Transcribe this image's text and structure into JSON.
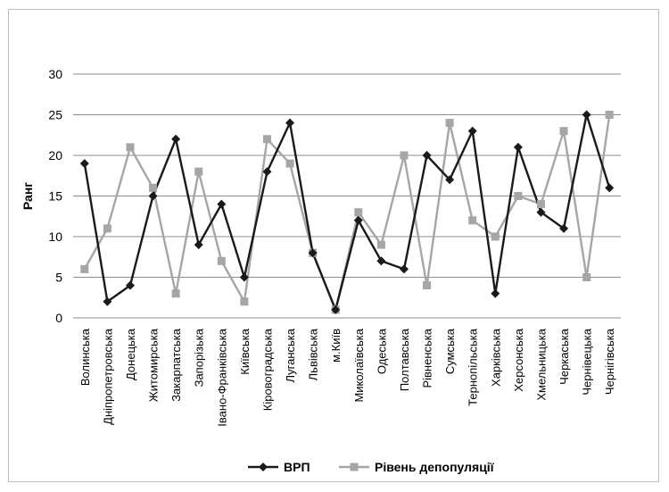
{
  "chart_data": {
    "type": "line",
    "title": "",
    "xlabel": "",
    "ylabel": "Ранг",
    "ylim": [
      0,
      30
    ],
    "yticks": [
      0,
      5,
      10,
      15,
      20,
      25,
      30
    ],
    "grid": "horizontal",
    "legend_position": "bottom",
    "categories": [
      "Волинська",
      "Дніпропетровська",
      "Донецька",
      "Житомирська",
      "Закарпатська",
      "Запорізька",
      "Івано-Франківська",
      "Київська",
      "Кіровоградська",
      "Луганська",
      "Львівська",
      "м.Київ",
      "Миколаївська",
      "Одеська",
      "Полтавська",
      "Рівненська",
      "Сумська",
      "Тернопільська",
      "Харківська",
      "Херсонська",
      "Хмельницька",
      "Черкаська",
      "Чернівецька",
      "Чернігівська"
    ],
    "series": [
      {
        "name": "ВРП",
        "color": "#1a1a1a",
        "marker": "diamond",
        "values": [
          19,
          2,
          4,
          15,
          22,
          9,
          14,
          5,
          18,
          24,
          8,
          1,
          12,
          7,
          6,
          20,
          17,
          23,
          3,
          21,
          13,
          11,
          25,
          16
        ]
      },
      {
        "name": "Рівень депопуляції",
        "color": "#a6a6a6",
        "marker": "square",
        "values": [
          6,
          11,
          21,
          16,
          3,
          18,
          7,
          2,
          22,
          19,
          8,
          1,
          13,
          9,
          20,
          4,
          24,
          12,
          10,
          15,
          14,
          23,
          5,
          25
        ]
      }
    ]
  }
}
